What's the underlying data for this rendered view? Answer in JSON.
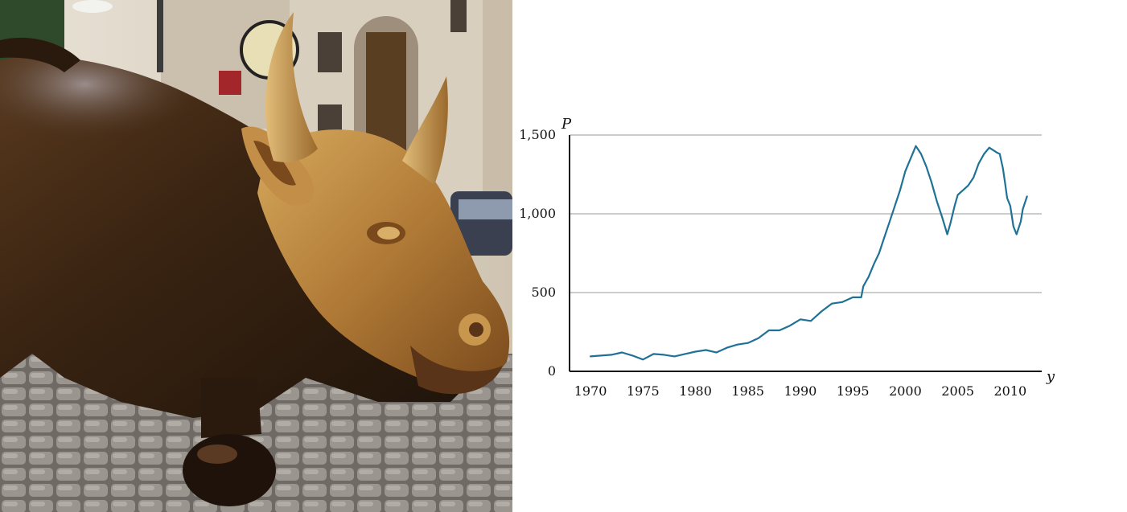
{
  "photo": {
    "subject": "charging bull bronze statue",
    "colors": {
      "bronze": "#a8783a",
      "bronze_dark": "#3a2412",
      "bronze_light": "#d8ae68",
      "stone": "#d9cfbf",
      "cobble": "#8c8680"
    }
  },
  "chart_data": {
    "type": "line",
    "xlabel": "y",
    "ylabel": "P",
    "xlim": [
      1968,
      2013
    ],
    "ylim": [
      0,
      1500
    ],
    "x_ticks": [
      1970,
      1975,
      1980,
      1985,
      1990,
      1995,
      2000,
      2005,
      2010
    ],
    "x_tick_labels": [
      "1970",
      "1975",
      "1980",
      "1985",
      "1990",
      "1995",
      "2000",
      "2005",
      "2010"
    ],
    "y_ticks": [
      0,
      500,
      1000,
      1500
    ],
    "y_tick_labels": [
      "0",
      "500",
      "1,000",
      "1,500"
    ],
    "grid": "horizontal",
    "line_color": "#1f7296",
    "series": [
      {
        "x": [
          1970,
          1971,
          1972,
          1973,
          1974,
          1975,
          1976,
          1977,
          1978,
          1979,
          1980,
          1981,
          1982,
          1983,
          1984,
          1985,
          1986,
          1987,
          1988,
          1989,
          1990,
          1991,
          1992,
          1993,
          1994,
          1995,
          1995.8,
          1996,
          1996.5,
          1997,
          1997.5,
          1998,
          1998.5,
          1999,
          1999.5,
          2000,
          2000.5,
          2001,
          2001.5,
          2002,
          2002.5,
          2003,
          2003.5,
          2004,
          2004.3,
          2004.7,
          2005,
          2005.5,
          2006,
          2006.5,
          2007,
          2007.5,
          2008,
          2008.7,
          2009,
          2009.3,
          2009.5,
          2009.7,
          2010,
          2010.3,
          2010.6,
          2011,
          2011.2,
          2011.6
        ],
        "values": [
          95,
          100,
          105,
          120,
          100,
          75,
          110,
          105,
          95,
          110,
          125,
          135,
          120,
          150,
          170,
          180,
          210,
          260,
          260,
          290,
          330,
          320,
          380,
          430,
          440,
          470,
          470,
          540,
          600,
          680,
          750,
          850,
          950,
          1050,
          1150,
          1270,
          1350,
          1430,
          1380,
          1300,
          1200,
          1080,
          980,
          870,
          940,
          1050,
          1120,
          1150,
          1180,
          1230,
          1320,
          1380,
          1420,
          1390,
          1380,
          1290,
          1200,
          1100,
          1050,
          920,
          870,
          950,
          1030,
          1110
        ]
      }
    ]
  }
}
